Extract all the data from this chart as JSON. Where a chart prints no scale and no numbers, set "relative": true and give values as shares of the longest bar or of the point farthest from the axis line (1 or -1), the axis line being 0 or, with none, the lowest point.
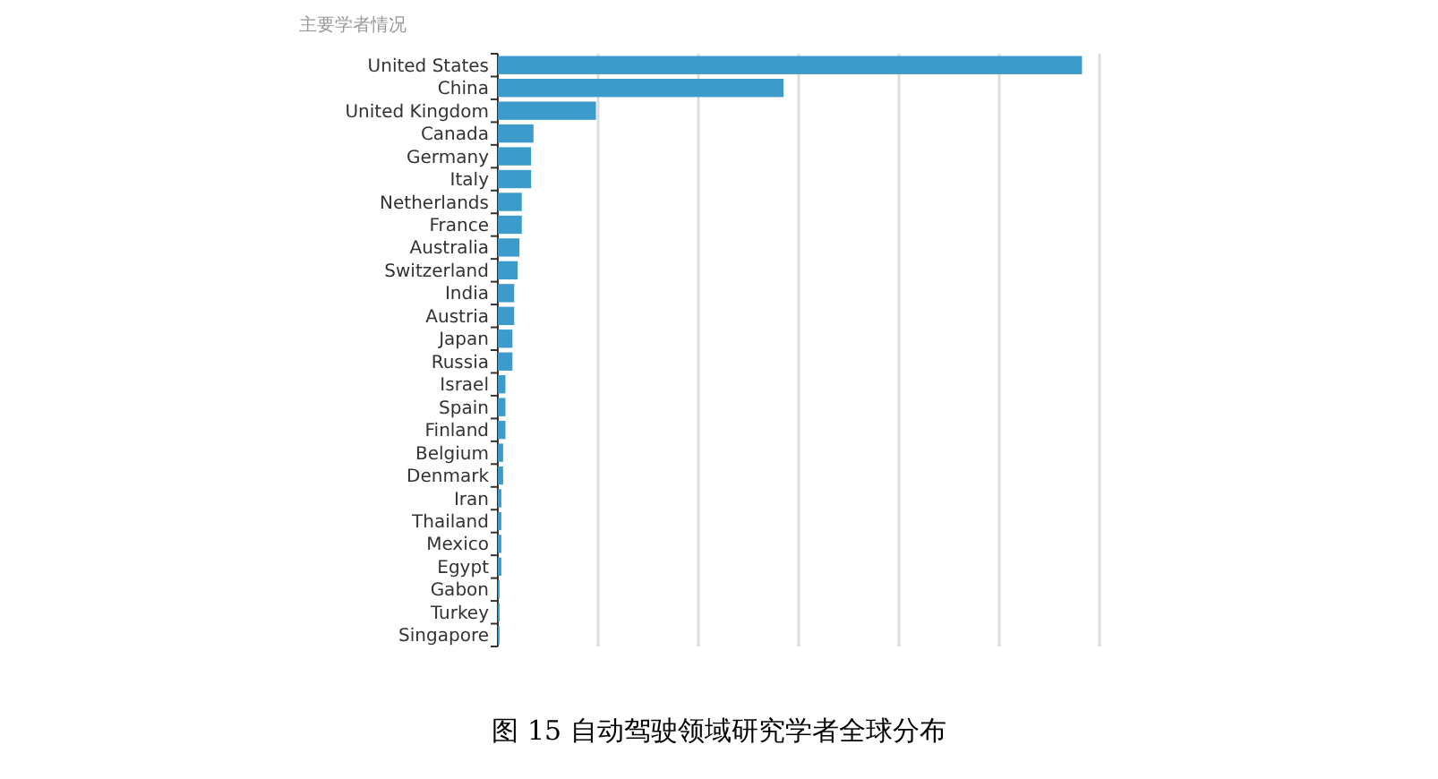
{
  "chart_data": {
    "type": "bar",
    "orientation": "horizontal",
    "relative": true,
    "title": "主要学者情况",
    "categories": [
      "United States",
      "China",
      "United Kingdom",
      "Canada",
      "Germany",
      "Italy",
      "Netherlands",
      "France",
      "Australia",
      "Switzerland",
      "India",
      "Austria",
      "Japan",
      "Russia",
      "Israel",
      "Spain",
      "Finland",
      "Belgium",
      "Denmark",
      "Iran",
      "Thailand",
      "Mexico",
      "Egypt",
      "Gabon",
      "Turkey",
      "Singapore"
    ],
    "values": [
      1,
      0.489,
      0.168,
      0.061,
      0.057,
      0.057,
      0.041,
      0.041,
      0.037,
      0.034,
      0.028,
      0.028,
      0.025,
      0.025,
      0.013,
      0.013,
      0.013,
      0.009,
      0.009,
      0.006,
      0.006,
      0.006,
      0.006,
      0.003,
      0.003,
      0.003
    ],
    "color": "#3d9bcb",
    "grid": "x",
    "annotations": [
      "图 15 自动驾驶领域研究学者全球分布"
    ]
  }
}
